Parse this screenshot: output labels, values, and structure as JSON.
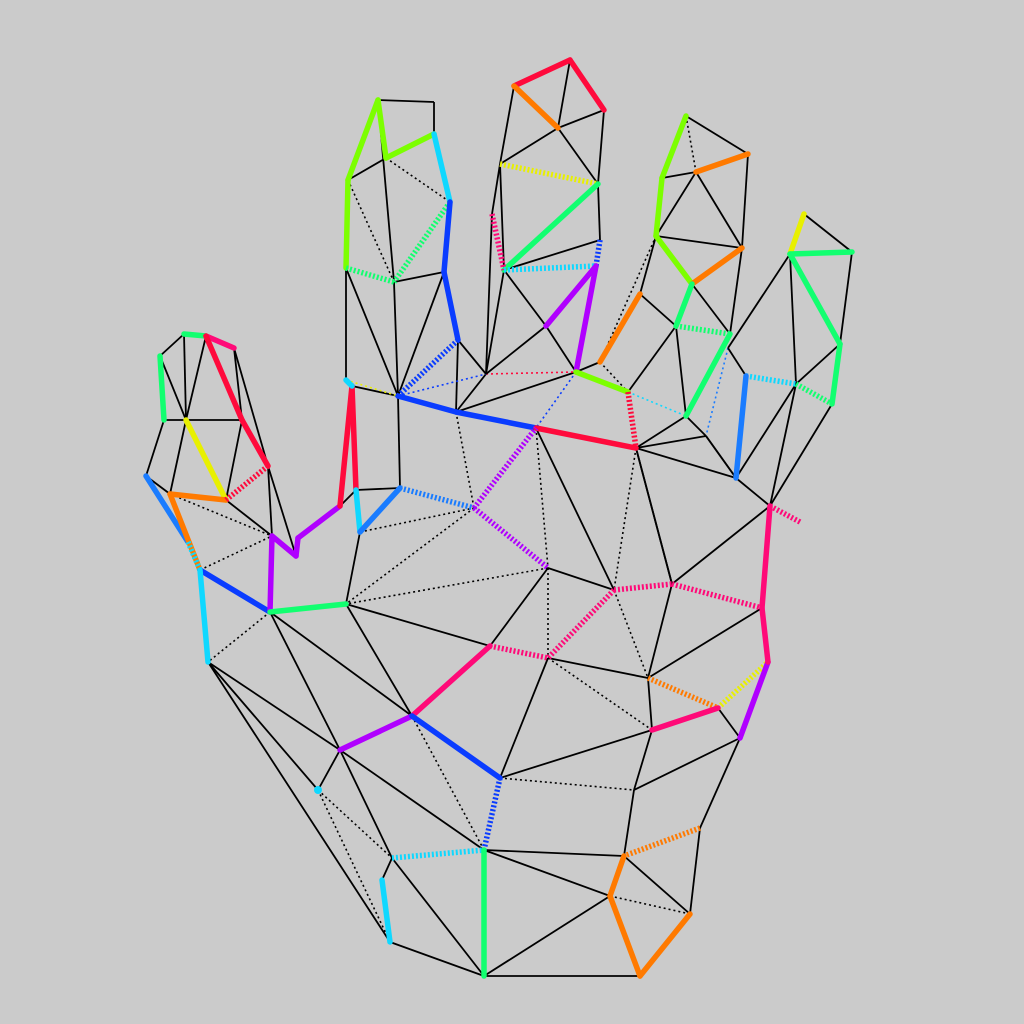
{
  "scene": {
    "background": "#cbcbcb",
    "subject": "hand-wireframe-mesh"
  },
  "palette": {
    "black": "#000000",
    "red": "#ff0a3c",
    "orange": "#ff7a00",
    "yellow": "#e8f000",
    "lime": "#7cff00",
    "green": "#12ff70",
    "cyan": "#10d8ff",
    "blue": "#0a3cff",
    "azure": "#1a7cff",
    "purple": "#b000ff",
    "pink": "#ff0a78"
  }
}
